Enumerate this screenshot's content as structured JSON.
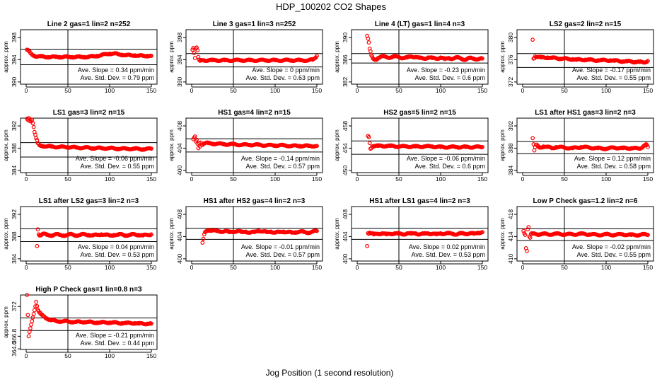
{
  "figure": {
    "title": "HDP_100202  CO2 Shapes",
    "xlabel": "Jog Position (1 second resolution)"
  },
  "colors": {
    "points": "#ff0000",
    "axes": "#000000"
  },
  "chart_data": [
    {
      "type": "scatter",
      "title": "Line 2 gas=1 lin=2 n=252",
      "ylabel": "approx. ppm",
      "xlim": [
        0,
        150
      ],
      "xticks": [
        0,
        50,
        100,
        150
      ],
      "ylim": [
        389.6,
        399.4
      ],
      "yticks": [
        390,
        394,
        398
      ],
      "ref_lines": [
        395.9,
        393.1
      ],
      "slope_text": "Ave. Slope = 0.34 ppm/min",
      "sd_text": "Ave. Std. Dev. = 0.79 ppm",
      "x": [
        1,
        3,
        5,
        7,
        10,
        14,
        18,
        22,
        26,
        30,
        35,
        40,
        45,
        50,
        55,
        60,
        65,
        70,
        75,
        80,
        85,
        90,
        95,
        100,
        105,
        110,
        115,
        120,
        125,
        130,
        135,
        140,
        145,
        150
      ],
      "y": [
        395.8,
        395.6,
        395.2,
        394.9,
        394.7,
        394.6,
        394.6,
        394.5,
        394.5,
        394.5,
        394.5,
        394.5,
        394.5,
        394.5,
        394.5,
        394.5,
        394.5,
        394.5,
        394.5,
        394.6,
        394.7,
        394.8,
        395.0,
        395.1,
        395.1,
        395.0,
        394.9,
        394.8,
        394.8,
        394.8,
        394.7,
        394.7,
        394.7,
        394.7
      ]
    },
    {
      "type": "scatter",
      "title": "Line 3 gas=1 lin=3 n=252",
      "ylabel": "approx. ppm",
      "xlim": [
        0,
        150
      ],
      "xticks": [
        0,
        50,
        100,
        150
      ],
      "ylim": [
        389.6,
        399.4
      ],
      "yticks": [
        390,
        394,
        398
      ],
      "ref_lines": [
        395.1,
        392.7
      ],
      "slope_text": "Ave. Slope = 0  ppm/min",
      "sd_text": "Ave. Std. Dev. = 0.63 ppm",
      "x": [
        1,
        2,
        3,
        4,
        5,
        6,
        7,
        8,
        9,
        10,
        12,
        15,
        20,
        25,
        30,
        40,
        50,
        60,
        70,
        80,
        90,
        100,
        110,
        120,
        130,
        140,
        145,
        148,
        150
      ],
      "y": [
        395.8,
        396.1,
        395.2,
        394.3,
        396.0,
        396.2,
        395.7,
        394.5,
        394.0,
        393.8,
        393.9,
        393.9,
        393.9,
        393.9,
        393.9,
        393.9,
        393.9,
        393.9,
        393.9,
        393.9,
        393.9,
        393.9,
        393.9,
        393.9,
        393.9,
        393.9,
        394.0,
        394.3,
        394.7
      ]
    },
    {
      "type": "scatter",
      "title": "Line 4 (LT) gas=1 lin=4 n=3",
      "ylabel": "approx. ppm",
      "xlim": [
        0,
        150
      ],
      "xticks": [
        0,
        50,
        100,
        150
      ],
      "ylim": [
        381.6,
        391.4
      ],
      "yticks": [
        382,
        386,
        390
      ],
      "ref_lines": [
        387.1,
        385.4
      ],
      "slope_text": "Ave. Slope = -0.23 ppm/min",
      "sd_text": "Ave. Std. Dev. = 0.6 ppm",
      "x": [
        12,
        13,
        14,
        15,
        17,
        19,
        22,
        25,
        30,
        35,
        40,
        45,
        50,
        55,
        60,
        65,
        70,
        75,
        80,
        85,
        90,
        95,
        100,
        105,
        110,
        115,
        120,
        125,
        130,
        135,
        140,
        145,
        150
      ],
      "y": [
        390.3,
        389.8,
        389.1,
        388.0,
        386.8,
        386.2,
        386.0,
        386.3,
        386.6,
        386.5,
        386.4,
        386.6,
        386.5,
        386.3,
        386.4,
        386.6,
        386.5,
        386.3,
        386.2,
        386.4,
        386.3,
        386.2,
        386.4,
        386.1,
        386.3,
        386.2,
        386.4,
        386.2,
        386.0,
        386.3,
        386.2,
        386.1,
        386.2
      ]
    },
    {
      "type": "scatter",
      "title": "LS2 gas=2 lin=2 n=15",
      "ylabel": "approx. ppm",
      "xlim": [
        0,
        150
      ],
      "xticks": [
        0,
        50,
        100,
        150
      ],
      "ylim": [
        371.6,
        381.4
      ],
      "yticks": [
        372,
        376,
        380
      ],
      "ref_lines": [
        377.1,
        374.6
      ],
      "slope_text": "Ave. Slope = -0.17 ppm/min",
      "sd_text": "Ave. Std. Dev. = 0.55 ppm",
      "x": [
        12,
        13,
        15,
        18,
        22,
        26,
        30,
        35,
        40,
        45,
        50,
        55,
        60,
        65,
        70,
        75,
        80,
        85,
        90,
        95,
        100,
        105,
        110,
        115,
        120,
        125,
        130,
        135,
        140,
        145,
        150
      ],
      "y": [
        379.6,
        376.2,
        376.6,
        376.5,
        376.4,
        376.4,
        376.4,
        376.3,
        376.3,
        376.2,
        376.2,
        376.1,
        376.1,
        376.0,
        376.0,
        376.0,
        376.0,
        375.9,
        375.9,
        375.9,
        375.9,
        375.9,
        375.8,
        375.8,
        375.7,
        375.7,
        375.7,
        375.6,
        375.6,
        375.5,
        375.8
      ]
    },
    {
      "type": "scatter",
      "title": "LS1 gas=3 lin=2 n=15",
      "ylabel": "approx. ppm",
      "xlim": [
        0,
        150
      ],
      "xticks": [
        0,
        50,
        100,
        150
      ],
      "ylim": [
        383.6,
        393.4
      ],
      "yticks": [
        384,
        388,
        392
      ],
      "ref_lines": [
        389.0,
        386.4
      ],
      "slope_text": "Ave. Slope = -0.06 ppm/min",
      "sd_text": "Ave. Std. Dev. = 0.55 ppm",
      "x": [
        1,
        2,
        3,
        4,
        5,
        6,
        7,
        8,
        9,
        10,
        12,
        14,
        16,
        20,
        25,
        30,
        40,
        50,
        60,
        70,
        80,
        90,
        100,
        110,
        120,
        130,
        140,
        150
      ],
      "y": [
        393.3,
        393.1,
        393.4,
        392.9,
        393.2,
        392.8,
        393.1,
        392.5,
        391.8,
        390.9,
        389.8,
        388.9,
        388.5,
        388.4,
        388.3,
        388.3,
        388.2,
        388.2,
        388.1,
        388.1,
        388.0,
        388.0,
        388.0,
        387.9,
        387.9,
        387.9,
        387.8,
        387.9
      ]
    },
    {
      "type": "scatter",
      "title": "HS1 gas=4 lin=2 n=15",
      "ylabel": "approx. ppm",
      "xlim": [
        0,
        150
      ],
      "xticks": [
        0,
        50,
        100,
        150
      ],
      "ylim": [
        399.6,
        409.4
      ],
      "yticks": [
        400,
        404,
        408
      ],
      "ref_lines": [
        405.7,
        403.3
      ],
      "slope_text": "Ave. Slope = -0.14 ppm/min",
      "sd_text": "Ave. Std. Dev. = 0.57 ppm",
      "x": [
        2,
        3,
        4,
        5,
        6,
        7,
        8,
        9,
        10,
        11,
        12,
        14,
        16,
        20,
        25,
        30,
        40,
        50,
        60,
        70,
        80,
        90,
        100,
        110,
        120,
        130,
        140,
        150
      ],
      "y": [
        405.6,
        405.9,
        406.1,
        405.2,
        405.5,
        404.8,
        404.0,
        404.9,
        404.3,
        405.0,
        404.6,
        404.8,
        404.9,
        404.9,
        404.8,
        404.8,
        404.7,
        404.7,
        404.6,
        404.6,
        404.6,
        404.5,
        404.5,
        404.5,
        404.4,
        404.4,
        404.4,
        404.4
      ]
    },
    {
      "type": "scatter",
      "title": "HS2 gas=5 lin=2 n=15",
      "ylabel": "approx. ppm",
      "xlim": [
        0,
        150
      ],
      "xticks": [
        0,
        50,
        100,
        150
      ],
      "ylim": [
        449.6,
        459.4
      ],
      "yticks": [
        450,
        454,
        458
      ],
      "ref_lines": [
        455.3,
        452.9
      ],
      "slope_text": "Ave. Slope = -0.06 ppm/min",
      "sd_text": "Ave. Std. Dev. = 0.6 ppm",
      "x": [
        13,
        14,
        16,
        18,
        20,
        25,
        30,
        35,
        40,
        50,
        60,
        70,
        80,
        90,
        100,
        110,
        120,
        130,
        140,
        150
      ],
      "y": [
        456.2,
        456.0,
        453.9,
        454.3,
        454.4,
        454.4,
        454.4,
        454.4,
        454.4,
        454.3,
        454.3,
        454.3,
        454.3,
        454.3,
        454.2,
        454.2,
        454.2,
        454.2,
        454.2,
        454.2
      ]
    },
    {
      "type": "scatter",
      "title": "LS1 after HS1 gas=3 lin=2 n=3",
      "ylabel": "approx. ppm",
      "xlim": [
        0,
        150
      ],
      "xticks": [
        0,
        50,
        100,
        150
      ],
      "ylim": [
        383.6,
        393.4
      ],
      "yticks": [
        384,
        388,
        392
      ],
      "ref_lines": [
        389.2,
        387.0
      ],
      "slope_text": "Ave. Slope = 0.12 ppm/min",
      "sd_text": "Ave. Std. Dev. = 0.58 ppm",
      "x": [
        12,
        13,
        14,
        16,
        18,
        20,
        25,
        30,
        35,
        40,
        50,
        60,
        70,
        80,
        90,
        100,
        110,
        120,
        130,
        140,
        145,
        148,
        150
      ],
      "y": [
        389.8,
        388.7,
        387.6,
        388.6,
        388.4,
        388.1,
        388.3,
        388.2,
        388.0,
        388.2,
        388.1,
        388.0,
        388.2,
        388.1,
        388.0,
        387.9,
        388.1,
        388.0,
        388.0,
        387.9,
        388.4,
        388.7,
        388.2
      ]
    },
    {
      "type": "scatter",
      "title": "LS1 after LS2 gas=3 lin=2 n=3",
      "ylabel": "approx. ppm",
      "xlim": [
        0,
        150
      ],
      "xticks": [
        0,
        50,
        100,
        150
      ],
      "ylim": [
        383.6,
        393.4
      ],
      "yticks": [
        384,
        388,
        392
      ],
      "ref_lines": [
        389.4,
        387.1
      ],
      "slope_text": "Ave. Slope = 0.04  ppm/min",
      "sd_text": "Ave. Std. Dev. = 0.53 ppm",
      "x": [
        13,
        14,
        15,
        17,
        20,
        25,
        30,
        35,
        40,
        45,
        50,
        55,
        60,
        65,
        70,
        75,
        80,
        85,
        90,
        95,
        100,
        105,
        110,
        115,
        120,
        125,
        130,
        135,
        140,
        145,
        150
      ],
      "y": [
        386.3,
        389.3,
        388.4,
        388.2,
        388.5,
        388.3,
        388.2,
        388.4,
        388.3,
        388.2,
        388.3,
        388.4,
        388.2,
        388.3,
        388.4,
        388.3,
        388.2,
        388.3,
        388.4,
        388.3,
        388.2,
        388.3,
        388.3,
        388.4,
        388.2,
        388.3,
        388.4,
        388.3,
        388.2,
        388.3,
        388.4
      ]
    },
    {
      "type": "scatter",
      "title": "HS1 after HS2 gas=4 lin=2 n=3",
      "ylabel": "approx. ppm",
      "xlim": [
        0,
        150
      ],
      "xticks": [
        0,
        50,
        100,
        150
      ],
      "ylim": [
        399.6,
        409.4
      ],
      "yticks": [
        400,
        404,
        408
      ],
      "ref_lines": [
        405.5,
        403.5
      ],
      "slope_text": "Ave. Slope = -0.01  ppm/min",
      "sd_text": "Ave. Std. Dev. = 0.57 ppm",
      "x": [
        13,
        14,
        15,
        16,
        18,
        20,
        25,
        30,
        35,
        40,
        45,
        50,
        55,
        60,
        65,
        70,
        75,
        80,
        85,
        90,
        95,
        100,
        105,
        110,
        115,
        120,
        125,
        130,
        135,
        140,
        145,
        150
      ],
      "y": [
        402.9,
        403.6,
        404.4,
        404.8,
        405.0,
        405.2,
        405.1,
        405.0,
        404.9,
        405.0,
        404.8,
        404.9,
        405.0,
        404.8,
        404.9,
        404.7,
        404.8,
        405.1,
        404.9,
        404.8,
        404.9,
        404.7,
        404.8,
        404.9,
        404.8,
        404.7,
        404.8,
        404.9,
        404.8,
        404.7,
        404.9,
        405.0
      ]
    },
    {
      "type": "scatter",
      "title": "HS1 after LS1 gas=4 lin=2 n=3",
      "ylabel": "approx. ppm",
      "xlim": [
        0,
        150
      ],
      "xticks": [
        0,
        50,
        100,
        150
      ],
      "ylim": [
        399.6,
        409.4
      ],
      "yticks": [
        400,
        404,
        408
      ],
      "ref_lines": [
        405.5,
        403.5
      ],
      "slope_text": "Ave. Slope = 0.02  ppm/min",
      "sd_text": "Ave. Std. Dev. = 0.53 ppm",
      "x": [
        12,
        13,
        14,
        15,
        17,
        20,
        25,
        30,
        35,
        40,
        45,
        50,
        55,
        60,
        65,
        70,
        75,
        80,
        85,
        90,
        95,
        100,
        105,
        110,
        115,
        120,
        125,
        130,
        135,
        140,
        145,
        150
      ],
      "y": [
        402.3,
        404.6,
        404.5,
        404.7,
        404.6,
        404.4,
        404.5,
        404.6,
        404.4,
        404.5,
        404.6,
        404.5,
        404.4,
        404.6,
        404.5,
        404.6,
        404.4,
        404.5,
        404.6,
        404.5,
        404.4,
        404.6,
        404.5,
        404.6,
        404.5,
        404.4,
        404.6,
        404.5,
        404.6,
        404.5,
        404.7,
        404.8
      ]
    },
    {
      "type": "scatter",
      "title": "Low P Check gas=1.2 lin=2 n=6",
      "ylabel": "approx. ppm",
      "xlim": [
        0,
        150
      ],
      "xticks": [
        0,
        50,
        100,
        150
      ],
      "ylim": [
        409.6,
        419.4
      ],
      "yticks": [
        410,
        414,
        418
      ],
      "ref_lines": [
        415.4,
        413.3
      ],
      "slope_text": "Ave. Slope = -0.02 ppm/min",
      "sd_text": "Ave. Std. Dev. = 0.55 ppm",
      "x": [
        1,
        2,
        3,
        4,
        5,
        6,
        7,
        8,
        9,
        10,
        12,
        15,
        20,
        25,
        30,
        40,
        50,
        60,
        70,
        80,
        90,
        100,
        110,
        120,
        130,
        140,
        145,
        150
      ],
      "y": [
        415.0,
        414.6,
        414.3,
        411.9,
        411.4,
        415.3,
        415.7,
        414.0,
        413.8,
        414.5,
        414.5,
        414.5,
        414.4,
        414.5,
        414.4,
        414.5,
        414.4,
        414.4,
        414.5,
        414.4,
        414.3,
        414.4,
        414.3,
        414.4,
        414.3,
        414.3,
        414.4,
        414.3
      ]
    },
    {
      "type": "scatter",
      "title": "High P Check gas=1 lin=0.8 n=3",
      "ylabel": "approx. ppm",
      "xlim": [
        0,
        150
      ],
      "xticks": [
        0,
        50,
        100,
        150
      ],
      "ylim": [
        364.5,
        374.0
      ],
      "yticks": [
        364.6,
        366.8,
        372
      ],
      "ref_lines": [
        370.0,
        367.8
      ],
      "slope_text": "Ave. Slope = -0.21 ppm/min",
      "sd_text": "Ave. Std. Dev. = 0.44 ppm",
      "x": [
        1,
        3,
        12,
        14,
        16,
        18,
        20,
        22,
        25,
        28,
        30,
        35,
        40,
        45,
        50,
        55,
        60,
        65,
        70,
        75,
        80,
        85,
        90,
        95,
        100,
        105,
        110,
        115,
        120,
        125,
        130,
        135,
        140,
        145,
        150
      ],
      "y": [
        374.0,
        366.8,
        372.8,
        371.4,
        370.9,
        370.6,
        370.4,
        370.2,
        369.9,
        369.7,
        369.6,
        369.5,
        369.4,
        369.4,
        369.4,
        369.3,
        369.3,
        369.3,
        369.3,
        369.3,
        369.2,
        369.2,
        369.2,
        369.2,
        369.2,
        369.2,
        369.1,
        369.1,
        369.1,
        369.1,
        369.1,
        369.0,
        369.0,
        369.0,
        369.0
      ]
    }
  ]
}
